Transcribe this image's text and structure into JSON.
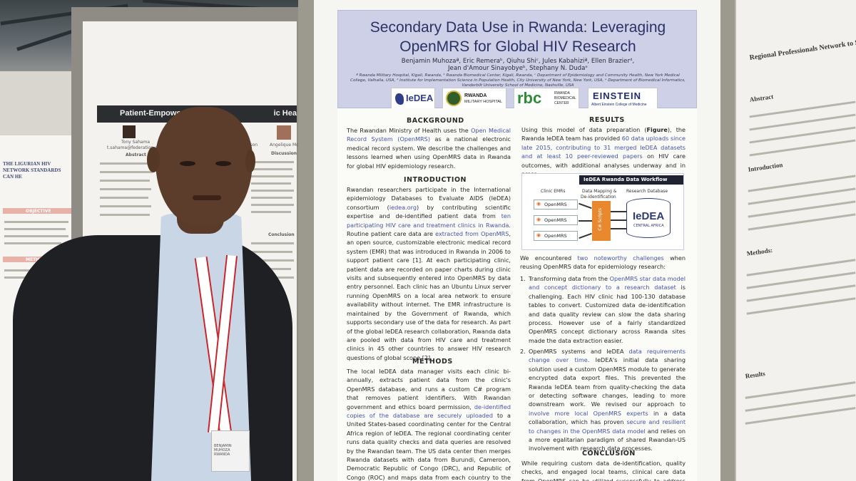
{
  "main_poster": {
    "title_line1": "Secondary Data Use in Rwanda: Leveraging",
    "title_line2": "OpenMRS for Global HIV Research",
    "authors_line1": "Benjamin Muhozaª, Eric Remeraᵇ, Qiuhu Shiᶜ, Jules Kabahiziª, Ellen Brazierᵈ,",
    "authors_line2": "Jean d'Amour Sinayobyeᵇ, Stephany N. Dudaᵉ",
    "affiliations_line1": "ª Rwanda Military Hospital, Kigali, Rwanda, ᵇ Rwanda Biomedical Center, Kigali, Rwanda, ᶜ Department of Epidemiology and Community Health, New York Medical",
    "affiliations_line2": "College, Valhalla, USA, ᵈ Institute for Implementation Science in Population Health, City University of New York, New York, USA, ᵉ Department of Biomedical Informatics,",
    "affiliations_line3": "Vanderbilt University School of Medicine, Nashville, USA",
    "logos": {
      "iedea": "IeDEA",
      "rmh_line1": "RWANDA",
      "rmh_line2": "MILITARY HOSPITAL",
      "rbc": "rbc",
      "rbc_sub_line1": "RWANDA",
      "rbc_sub_line2": "BIOMEDICAL",
      "rbc_sub_line3": "CENTER",
      "einstein": "EINSTEIN",
      "einstein_sub": "Albert Einstein College of Medicine"
    },
    "background": {
      "heading": "BACKGROUND",
      "p1": "The Rwandan Ministry of Health uses the ",
      "h1": "Open Medical Record System (OpenMRS)",
      "p2": " as a national electronic medical record system. We describe the challenges and lessons learned when using OpenMRS data in Rwanda for global HIV epidemiology research."
    },
    "introduction": {
      "heading": "INTRODUCTION",
      "p1": "Rwandan researchers participate in the International epidemiology Databases to Evaluate AIDS (IeDEA) consortium (",
      "h1": "iedea.org",
      "p2": ") by contributing scientific expertise and de-identified patient data from ",
      "h2": "ten participating HIV care and treatment clinics in Rwanda",
      "p3": ". Routine patient care data are ",
      "h3": "extracted from OpenMRS",
      "p4": ", an open source, customizable electronic medical record system (EMR) that was introduced in Rwanda in 2006 to support patient care [1]. At each participating clinic, patient data are recorded on paper charts during clinic visits and subsequently entered into OpenMRS by data entry personnel. Each clinic has an Ubuntu Linux server running OpenMRS on a local area network to ensure availability without internet. The EMR infrastructure is maintained by the Government of Rwanda, which supports secondary use of the data for research. As part of the global IeDEA research collaboration, Rwanda data are pooled with data from HIV care and treatment clinics in 45 other countries to answer HIV research questions of global scope [2]."
    },
    "methods": {
      "heading": "METHODS",
      "p1": "The local IeDEA data manager visits each clinic bi-annually, extracts patient data from the clinic's OpenMRS database, and runs a custom C# program that removes patient identifiers. With Rwandan government and ethics board permission, ",
      "h1": "de-identified copies of the database are securely uploaded",
      "p2": " to a United States-based coordinating center for the Central Africa region of IeDEA. The regional coordinating center runs data quality checks and data queries are resolved by the Rwandan team. The US data center then merges Rwanda datasets with data from Burundi, Cameroon, Democratic Republic of Congo (DRC), and Republic of Congo (ROC) and maps data from each country to the IeDEA Data Exchange Standard"
    },
    "results": {
      "heading": "RESULTS",
      "p1": "Using this model of data preparation (",
      "b1": "Figure",
      "p2": "), the Rwanda IeDEA team has provided ",
      "h1": "60 data uploads since late 2015, contributing to 31 merged IeDEA datasets and at least 10 peer-reviewed papers",
      "p3": " on HIV care outcomes, with additional analyses underway and in press."
    },
    "diagram": {
      "title": "IeDEA Rwanda Data Workflow",
      "col1": "Clinic EMRs",
      "col2_line1": "Data Mapping &",
      "col2_line2": "De-identification",
      "col3": "Research Database",
      "emr_label": "OpenMRS",
      "script_label": "C# Scripts",
      "db_name": "IeDEA",
      "db_sub": "CENTRAL AFRICA"
    },
    "challenges": {
      "p1": "We encountered ",
      "h1": "two noteworthy challenges",
      "p2": " when reusing OpenMRS data for epidemiology research:",
      "item1_num": "1.",
      "item1_p1": "Transforming data from the ",
      "item1_h1": "OpenMRS star data model and concept dictionary to a research dataset",
      "item1_p2": " is challenging. Each HIV clinic had 100-130 database tables to convert. Customized data de-identification and data quality review can slow the data sharing process. However use of a fairly standardized OpenMRS concept dictionary across Rwanda sites made the data extraction easier.",
      "item2_num": "2.",
      "item2_p1": "OpenMRS systems and IeDEA ",
      "item2_h1": "data requirements change over time",
      "item2_p2": ". IeDEA's initial data sharing solution used a custom OpenMRS module to generate encrypted data export files. This prevented the Rwanda IeDEA team from quality-checking the data or detecting software changes, leading to more downstream work. We revised our approach to ",
      "item2_h2": "involve more local OpenMRS experts",
      "item2_p3": " in a data collaboration, which has proven ",
      "item2_h3": "secure and resilient to changes in the OpenMRS data model",
      "item2_p4": " and relies on a more egalitarian paradigm of shared Rwandan-US involvement with research data processes."
    },
    "conclusion": {
      "heading": "CONCLUSION",
      "p1": "While requiring custom data de-identification, quality checks, and engaged local teams, clinical care data from OpenMRS can be utilized successfully to address high-"
    }
  },
  "left_poster": {
    "title": "Patient-Empowe",
    "title_right": "ic Health Record",
    "author": "Tony Sahama",
    "email": "t.sahama@federation.edu.au",
    "author2_frag": "rson",
    "author3": "Angelique Mcir",
    "abstract_h": "Abstract",
    "discussion_h": "Discussion",
    "conclusion_h": "Conclusion"
  },
  "far_left_poster": {
    "title": "THE LIGURIAN HIV NETWORK STANDARDS CAN HE",
    "objective": "OBJECTIVE",
    "methods": "METHODS"
  },
  "right_poster": {
    "title": "Regional Professionals Network to Support",
    "abstract_frag": "Abstract",
    "intro_frag": "Introduction",
    "methods_frag": "Methods:",
    "results_frag": "Results"
  },
  "badge": {
    "name": "BENJAMIN MUHOZA",
    "org": "RWANDA"
  }
}
